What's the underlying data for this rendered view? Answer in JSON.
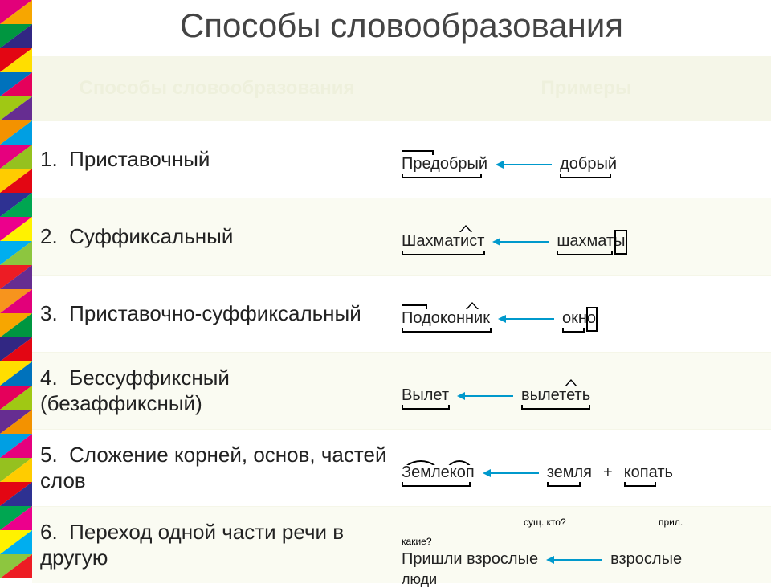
{
  "title": "Способы словообразования",
  "header": {
    "col1": "Способы словообразования",
    "col2": "Примеры"
  },
  "rows": [
    {
      "n": "1.",
      "label": "Приставочный",
      "ex": {
        "w1": "Предобрый",
        "w2": "добрый"
      }
    },
    {
      "n": "2.",
      "label": "Суффиксальный",
      "ex": {
        "w1": "Шахматист",
        "w2": "шахматы"
      }
    },
    {
      "n": "3.",
      "label": "Приставочно-суффиксальный",
      "ex": {
        "w1": "Подоконник",
        "w2": "окно"
      }
    },
    {
      "n": "4.",
      "label": "Бессуффиксный (безаффиксный)",
      "ex": {
        "w1": "Вылет",
        "w2": "вылететь"
      }
    },
    {
      "n": "5.",
      "label": "Сложение корней, основ, частей слов",
      "ex": {
        "w1": "Землекоп",
        "w2": "земля",
        "w3": "копать"
      }
    },
    {
      "n": "6.",
      "label": "Переход одной части речи в другую",
      "ex": {
        "q": "какие?",
        "s": "сущ. кто?",
        "p": "прил.",
        "sent": "Пришли взрослые",
        "w2": "взрослые",
        "tail": "люди"
      }
    }
  ],
  "style": {
    "title_fontsize": 42,
    "title_color": "#444444",
    "header_bg": "#f5f6e8",
    "header_fg": "#eef0dc",
    "row_fontsize": 26,
    "example_fontsize": 20,
    "arrow_color": "#0099cc",
    "alt_row_bg": "#fafbf2",
    "morph_color": "#000000"
  },
  "sidebar_colors": [
    "#e2007a",
    "#f7a600",
    "#009640",
    "#312783",
    "#e30613",
    "#ffde00",
    "#0072bc",
    "#e5005b",
    "#a0c814",
    "#662d91",
    "#f39200",
    "#009fe3",
    "#e6007e",
    "#95c11f",
    "#ffcc00",
    "#e30613",
    "#2e3192",
    "#00a651",
    "#ec008c",
    "#fff200",
    "#00aeef",
    "#8dc63f",
    "#ed1c24",
    "#662d91",
    "#f7941d"
  ]
}
